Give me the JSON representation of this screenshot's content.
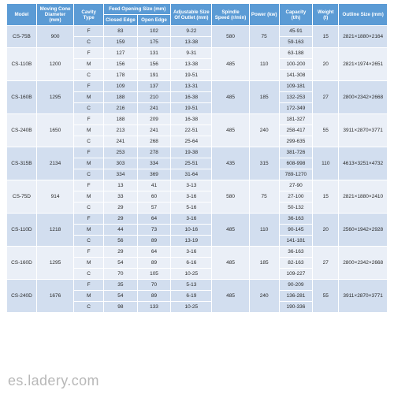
{
  "watermark": "es.ladery.com",
  "table": {
    "header_bg": "#5b9bd5",
    "row_alt_a": "#d2deef",
    "row_alt_b": "#eaeff7",
    "border_color": "#ffffff",
    "columns": {
      "model": "Model",
      "cone_dia": "Moving Cone Diameter (mm)",
      "cavity": "Cavity Type",
      "feed_group": "Feed Opening Size (mm)",
      "feed_closed": "Closed Edge",
      "feed_open": "Open Edge",
      "outlet": "Adjustable Size Of Outlet (mm)",
      "spindle": "Spindle Speed (r/min)",
      "power": "Power (kw)",
      "capacity": "Capacity (t/h)",
      "weight": "Weight (t)",
      "outline": "Outline Size (mm)"
    },
    "col_widths": [
      "8%",
      "10%",
      "8%",
      "9%",
      "9%",
      "11%",
      "10%",
      "8%",
      "9%",
      "7%",
      "13%"
    ],
    "groups": [
      {
        "model": "CS-75B",
        "cone": "900",
        "spindle": "580",
        "power": "75",
        "weight": "15",
        "outline": "2821×1880×2164",
        "rows": [
          {
            "cavity": "F",
            "closed": "83",
            "open": "102",
            "outlet": "9-22",
            "capacity": "45-91"
          },
          {
            "cavity": "C",
            "closed": "159",
            "open": "175",
            "outlet": "13-38",
            "capacity": "59-163"
          }
        ]
      },
      {
        "model": "CS-110B",
        "cone": "1200",
        "spindle": "485",
        "power": "110",
        "weight": "20",
        "outline": "2821×1974×2651",
        "rows": [
          {
            "cavity": "F",
            "closed": "127",
            "open": "131",
            "outlet": "9-31",
            "capacity": "63-188"
          },
          {
            "cavity": "M",
            "closed": "156",
            "open": "156",
            "outlet": "13-38",
            "capacity": "100-200"
          },
          {
            "cavity": "C",
            "closed": "178",
            "open": "191",
            "outlet": "19-51",
            "capacity": "141-308"
          }
        ]
      },
      {
        "model": "CS-160B",
        "cone": "1295",
        "spindle": "485",
        "power": "185",
        "weight": "27",
        "outline": "2800×2342×2668",
        "rows": [
          {
            "cavity": "F",
            "closed": "109",
            "open": "137",
            "outlet": "13-31",
            "capacity": "109-181"
          },
          {
            "cavity": "M",
            "closed": "188",
            "open": "210",
            "outlet": "16-38",
            "capacity": "132-253"
          },
          {
            "cavity": "C",
            "closed": "216",
            "open": "241",
            "outlet": "19-51",
            "capacity": "172-349"
          }
        ]
      },
      {
        "model": "CS-240B",
        "cone": "1650",
        "spindle": "485",
        "power": "240",
        "weight": "55",
        "outline": "3911×2870×3771",
        "rows": [
          {
            "cavity": "F",
            "closed": "188",
            "open": "209",
            "outlet": "16-38",
            "capacity": "181-327"
          },
          {
            "cavity": "M",
            "closed": "213",
            "open": "241",
            "outlet": "22-51",
            "capacity": "258-417"
          },
          {
            "cavity": "C",
            "closed": "241",
            "open": "268",
            "outlet": "25-64",
            "capacity": "299-635"
          }
        ]
      },
      {
        "model": "CS-315B",
        "cone": "2134",
        "spindle": "435",
        "power": "315",
        "weight": "110",
        "outline": "4613×3251×4732",
        "rows": [
          {
            "cavity": "F",
            "closed": "253",
            "open": "278",
            "outlet": "19-38",
            "capacity": "381-726"
          },
          {
            "cavity": "M",
            "closed": "303",
            "open": "334",
            "outlet": "25-51",
            "capacity": "608-998"
          },
          {
            "cavity": "C",
            "closed": "334",
            "open": "369",
            "outlet": "31-64",
            "capacity": "789-1270"
          }
        ]
      },
      {
        "model": "CS-75D",
        "cone": "914",
        "spindle": "580",
        "power": "75",
        "weight": "15",
        "outline": "2821×1880×2410",
        "rows": [
          {
            "cavity": "F",
            "closed": "13",
            "open": "41",
            "outlet": "3-13",
            "capacity": "27-90"
          },
          {
            "cavity": "M",
            "closed": "33",
            "open": "60",
            "outlet": "3-16",
            "capacity": "27-100"
          },
          {
            "cavity": "C",
            "closed": "29",
            "open": "57",
            "outlet": "5-16",
            "capacity": "50-132"
          }
        ]
      },
      {
        "model": "CS-110D",
        "cone": "1218",
        "spindle": "485",
        "power": "110",
        "weight": "20",
        "outline": "2560×1942×2928",
        "rows": [
          {
            "cavity": "F",
            "closed": "29",
            "open": "64",
            "outlet": "3-16",
            "capacity": "36-163"
          },
          {
            "cavity": "M",
            "closed": "44",
            "open": "73",
            "outlet": "10-16",
            "capacity": "90-145"
          },
          {
            "cavity": "C",
            "closed": "56",
            "open": "89",
            "outlet": "13-19",
            "capacity": "141-181"
          }
        ]
      },
      {
        "model": "CS-160D",
        "cone": "1295",
        "spindle": "485",
        "power": "185",
        "weight": "27",
        "outline": "2800×2342×2668",
        "rows": [
          {
            "cavity": "F",
            "closed": "29",
            "open": "64",
            "outlet": "3-16",
            "capacity": "36-163"
          },
          {
            "cavity": "M",
            "closed": "54",
            "open": "89",
            "outlet": "6-16",
            "capacity": "82-163"
          },
          {
            "cavity": "C",
            "closed": "70",
            "open": "105",
            "outlet": "10-25",
            "capacity": "109-227"
          }
        ]
      },
      {
        "model": "CS-240D",
        "cone": "1676",
        "spindle": "485",
        "power": "240",
        "weight": "55",
        "outline": "3911×2870×3771",
        "rows": [
          {
            "cavity": "F",
            "closed": "35",
            "open": "70",
            "outlet": "5-13",
            "capacity": "90-209"
          },
          {
            "cavity": "M",
            "closed": "54",
            "open": "89",
            "outlet": "6-19",
            "capacity": "136-281"
          },
          {
            "cavity": "C",
            "closed": "98",
            "open": "133",
            "outlet": "10-25",
            "capacity": "190-336"
          }
        ]
      }
    ]
  }
}
